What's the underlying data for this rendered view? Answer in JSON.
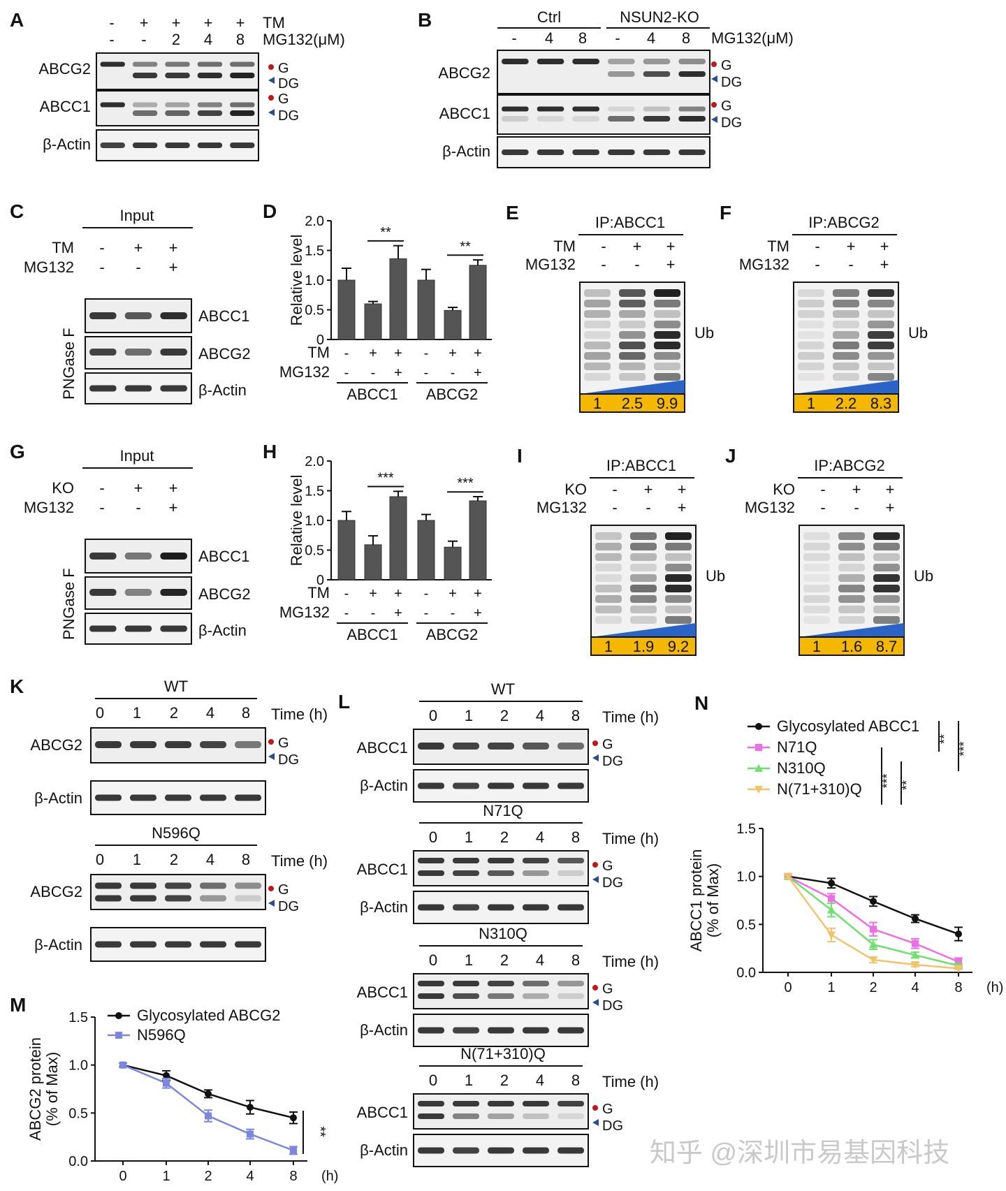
{
  "panels": {
    "A": {
      "label": "A",
      "tm_label": "TM",
      "tm": [
        "-",
        "+",
        "+",
        "+",
        "+"
      ],
      "dose_label": "MG132(μM)",
      "dose": [
        "-",
        "-",
        "2",
        "4",
        "8"
      ],
      "rows": [
        "ABCG2",
        "ABCC1",
        "β-Actin"
      ],
      "markers": {
        "g": "G",
        "dg": "DG"
      }
    },
    "B": {
      "label": "B",
      "groups": [
        "Ctrl",
        "NSUN2-KO"
      ],
      "dose_label": "MG132(μM)",
      "dose": [
        "-",
        "4",
        "8",
        "-",
        "4",
        "8"
      ],
      "rows": [
        "ABCG2",
        "ABCC1",
        "β-Actin"
      ],
      "markers": {
        "g": "G",
        "dg": "DG"
      }
    },
    "C": {
      "label": "C",
      "header": "Input",
      "cond1_label": "TM",
      "cond1": [
        "-",
        "+",
        "+"
      ],
      "cond2_label": "MG132",
      "cond2": [
        "-",
        "-",
        "+"
      ],
      "side": "PNGase F",
      "rows": [
        "ABCC1",
        "ABCG2",
        "β-Actin"
      ]
    },
    "E": {
      "label": "E",
      "header": "IP:ABCC1",
      "cond1_label": "TM",
      "cond1": [
        "-",
        "+",
        "+"
      ],
      "cond2_label": "MG132",
      "cond2": [
        "-",
        "-",
        "+"
      ],
      "band_label": "Ub",
      "quant": [
        "1",
        "2.5",
        "9.9"
      ]
    },
    "F": {
      "label": "F",
      "header": "IP:ABCG2",
      "cond1_label": "TM",
      "cond1": [
        "-",
        "+",
        "+"
      ],
      "cond2_label": "MG132",
      "cond2": [
        "-",
        "-",
        "+"
      ],
      "band_label": "Ub",
      "quant": [
        "1",
        "2.2",
        "8.3"
      ]
    },
    "G": {
      "label": "G",
      "header": "Input",
      "cond1_label": "KO",
      "cond1": [
        "-",
        "+",
        "+"
      ],
      "cond2_label": "MG132",
      "cond2": [
        "-",
        "-",
        "+"
      ],
      "side": "PNGase F",
      "rows": [
        "ABCC1",
        "ABCG2",
        "β-Actin"
      ]
    },
    "I": {
      "label": "I",
      "header": "IP:ABCC1",
      "cond1_label": "KO",
      "cond1": [
        "-",
        "+",
        "+"
      ],
      "cond2_label": "MG132",
      "cond2": [
        "-",
        "-",
        "+"
      ],
      "band_label": "Ub",
      "quant": [
        "1",
        "1.9",
        "9.2"
      ]
    },
    "J": {
      "label": "J",
      "header": "IP:ABCG2",
      "cond1_label": "KO",
      "cond1": [
        "-",
        "+",
        "+"
      ],
      "cond2_label": "MG132",
      "cond2": [
        "-",
        "-",
        "+"
      ],
      "band_label": "Ub",
      "quant": [
        "1",
        "1.6",
        "8.7"
      ]
    },
    "K": {
      "label": "K",
      "blots": [
        {
          "title": "WT",
          "row": "ABCG2"
        },
        {
          "title": "N596Q",
          "row": "ABCG2"
        }
      ],
      "times": [
        "0",
        "1",
        "2",
        "4",
        "8"
      ],
      "time_label": "Time (h)",
      "actin": "β-Actin",
      "markers": {
        "g": "G",
        "dg": "DG"
      }
    },
    "L": {
      "label": "L",
      "blots": [
        {
          "title": "WT",
          "row": "ABCC1"
        },
        {
          "title": "N71Q",
          "row": "ABCC1"
        },
        {
          "title": "N310Q",
          "row": "ABCC1"
        },
        {
          "title": "N(71+310)Q",
          "row": "ABCC1"
        }
      ],
      "times": [
        "0",
        "1",
        "2",
        "4",
        "8"
      ],
      "time_label": "Time (h)",
      "actin": "β-Actin",
      "markers": {
        "g": "G",
        "dg": "DG"
      }
    },
    "D": {
      "label": "D"
    },
    "H": {
      "label": "H"
    },
    "M": {
      "label": "M"
    },
    "N": {
      "label": "N"
    }
  },
  "chart_data": [
    {
      "id": "D",
      "type": "bar",
      "ylabel": "Relative level",
      "ylim": [
        0,
        2.0
      ],
      "yticks": [
        "0",
        "0.5",
        "1.0",
        "1.5",
        "2.0"
      ],
      "groups": [
        "ABCC1",
        "ABCG2"
      ],
      "cond1_label": "TM",
      "cond1": [
        "-",
        "+",
        "+",
        "-",
        "+",
        "+"
      ],
      "cond2_label": "MG132",
      "cond2": [
        "-",
        "-",
        "+",
        "-",
        "-",
        "+"
      ],
      "values": [
        1.0,
        0.6,
        1.36,
        1.0,
        0.49,
        1.25
      ],
      "errors": [
        0.2,
        0.04,
        0.22,
        0.18,
        0.05,
        0.09
      ],
      "significance": [
        {
          "bars": [
            1,
            2
          ],
          "label": "**"
        },
        {
          "bars": [
            4,
            5
          ],
          "label": "**"
        }
      ]
    },
    {
      "id": "H",
      "type": "bar",
      "ylabel": "Relative level",
      "ylim": [
        0,
        2.0
      ],
      "yticks": [
        "0",
        "0.5",
        "1.0",
        "1.5",
        "2.0"
      ],
      "groups": [
        "ABCC1",
        "ABCG2"
      ],
      "cond1_label": "TM",
      "cond1": [
        "-",
        "+",
        "+",
        "-",
        "+",
        "+"
      ],
      "cond2_label": "MG132",
      "cond2": [
        "-",
        "-",
        "+",
        "-",
        "-",
        "+"
      ],
      "values": [
        1.0,
        0.59,
        1.4,
        1.0,
        0.55,
        1.33
      ],
      "errors": [
        0.15,
        0.15,
        0.09,
        0.1,
        0.1,
        0.07
      ],
      "significance": [
        {
          "bars": [
            1,
            2
          ],
          "label": "***"
        },
        {
          "bars": [
            4,
            5
          ],
          "label": "***"
        }
      ]
    },
    {
      "id": "M",
      "type": "line",
      "ylabel": "ABCG2 protein",
      "ylabel2": "(% of Max)",
      "ylim": [
        0,
        1.5
      ],
      "yticks": [
        "0.0",
        "0.5",
        "1.0",
        "1.5"
      ],
      "x": [
        "0",
        "1",
        "2",
        "4",
        "8"
      ],
      "xunit": "(h)",
      "series": [
        {
          "name": "Glycosylated ABCG2",
          "color": "#111111",
          "marker": "circle",
          "values": [
            1.0,
            0.89,
            0.7,
            0.56,
            0.45
          ],
          "errors": [
            0.02,
            0.05,
            0.04,
            0.07,
            0.06
          ]
        },
        {
          "name": "N596Q",
          "color": "#7b86e0",
          "marker": "square",
          "values": [
            1.0,
            0.81,
            0.47,
            0.28,
            0.11
          ],
          "errors": [
            0.02,
            0.05,
            0.06,
            0.05,
            0.04
          ]
        }
      ],
      "significance": [
        {
          "label": "**"
        }
      ]
    },
    {
      "id": "N",
      "type": "line",
      "ylabel": "ABCC1 protein",
      "ylabel2": "(% of Max)",
      "ylim": [
        0,
        1.5
      ],
      "yticks": [
        "0.0",
        "0.5",
        "1.0",
        "1.5"
      ],
      "x": [
        "0",
        "1",
        "2",
        "4",
        "8"
      ],
      "xunit": "(h)",
      "series": [
        {
          "name": "Glycosylated ABCC1",
          "color": "#111111",
          "marker": "circle",
          "values": [
            1.0,
            0.93,
            0.74,
            0.56,
            0.4
          ],
          "errors": [
            0.02,
            0.05,
            0.05,
            0.04,
            0.07
          ]
        },
        {
          "name": "N71Q",
          "color": "#ee6ee8",
          "marker": "square",
          "values": [
            1.0,
            0.77,
            0.45,
            0.3,
            0.11
          ],
          "errors": [
            0.02,
            0.05,
            0.07,
            0.05,
            0.04
          ]
        },
        {
          "name": "N310Q",
          "color": "#6de06d",
          "marker": "triangle-up",
          "values": [
            1.0,
            0.65,
            0.29,
            0.18,
            0.07
          ],
          "errors": [
            0.02,
            0.07,
            0.05,
            0.03,
            0.02
          ]
        },
        {
          "name": "N(71+310)Q",
          "color": "#f2c46a",
          "marker": "triangle-down",
          "values": [
            1.0,
            0.39,
            0.13,
            0.08,
            0.04
          ],
          "errors": [
            0.02,
            0.07,
            0.03,
            0.02,
            0.01
          ]
        }
      ],
      "significance": [
        {
          "label": "**"
        },
        {
          "label": "***"
        },
        {
          "label": "***"
        },
        {
          "label": "**"
        }
      ]
    }
  ],
  "watermark": "知乎 @深圳市易基因科技",
  "colors": {
    "quant_bg": "#f5b800",
    "wedge": "#2a64c7",
    "g_marker": "#c01818",
    "dg_marker": "#2a4a9a"
  }
}
